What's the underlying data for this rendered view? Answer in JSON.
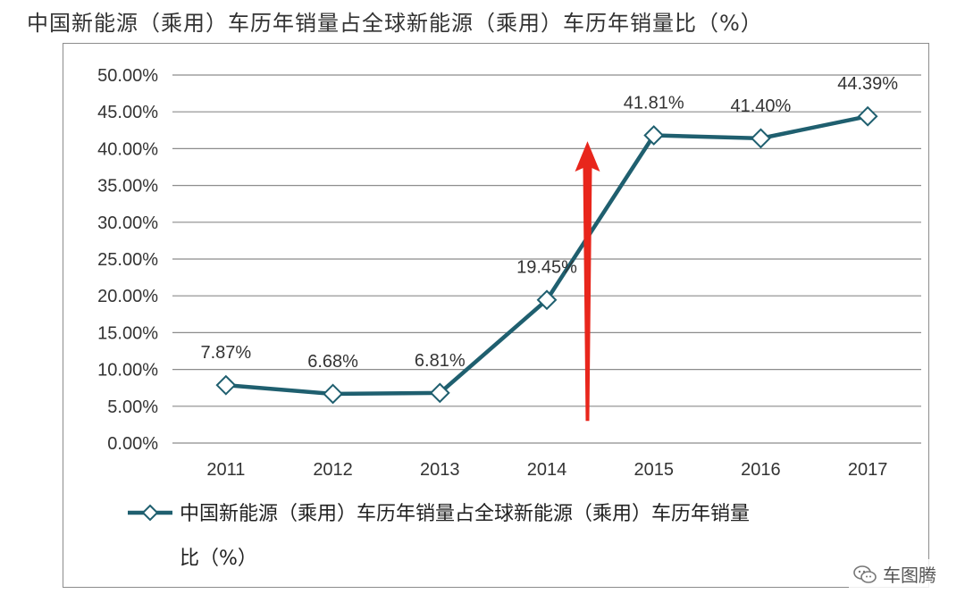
{
  "page": {
    "title": "中国新能源（乘用）车历年销量占全球新能源（乘用）车历年销量比（%）",
    "watermark": "车图腾",
    "watermark_icon": "wechat-icon"
  },
  "colors": {
    "line": "#1f5f6f",
    "marker_fill": "#ffffff",
    "arrow": "#e8261c",
    "grid": "#8c8c8c",
    "text": "#333333"
  },
  "chart_data": {
    "type": "line",
    "title": "中国新能源（乘用）车历年销量占全球新能源（乘用）车历年销量比（%）",
    "xlabel": "",
    "ylabel": "",
    "categories": [
      "2011",
      "2012",
      "2013",
      "2014",
      "2015",
      "2016",
      "2017"
    ],
    "series": [
      {
        "name": "中国新能源（乘用）车历年销量占全球新能源（乘用）车历年销量比（%）",
        "values": [
          7.87,
          6.68,
          6.81,
          19.45,
          41.81,
          41.4,
          44.39
        ],
        "data_labels": [
          "7.87%",
          "6.68%",
          "6.81%",
          "19.45%",
          "41.81%",
          "41.40%",
          "44.39%"
        ]
      }
    ],
    "ylim": [
      0,
      50
    ],
    "yticks": [
      0,
      5,
      10,
      15,
      20,
      25,
      30,
      35,
      40,
      45,
      50
    ],
    "ytick_labels": [
      "0.00%",
      "5.00%",
      "10.00%",
      "15.00%",
      "20.00%",
      "25.00%",
      "30.00%",
      "35.00%",
      "40.00%",
      "45.00%",
      "50.00%"
    ],
    "grid": true,
    "legend_position": "bottom",
    "legend_lines": [
      "中国新能源（乘用）车历年销量占全球新能源（乘用）车历年销量",
      "比（%）"
    ],
    "annotation": {
      "type": "arrow",
      "color": "#e8261c",
      "x_between": [
        "2014",
        "2015"
      ],
      "y_from": 3,
      "y_to": 41
    }
  }
}
